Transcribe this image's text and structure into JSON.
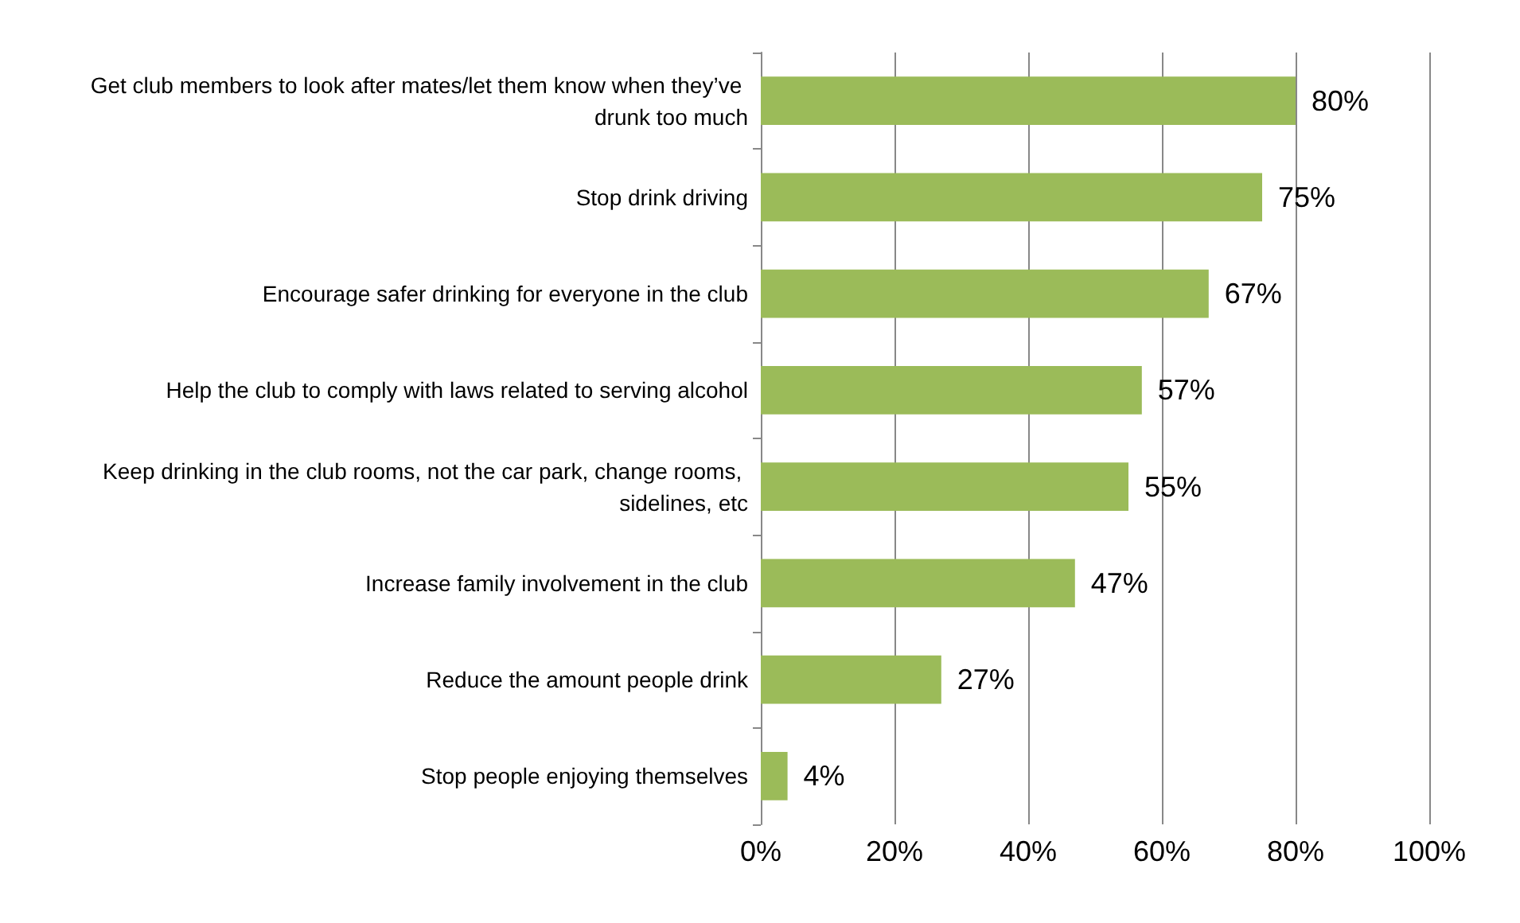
{
  "chart_data": {
    "type": "bar",
    "orientation": "horizontal",
    "categories": [
      "Get club members to look after mates/let them know when they’ve drunk too much",
      "Stop drink driving",
      "Encourage safer drinking for everyone in the club",
      "Help the club to comply with laws related to serving alcohol",
      "Keep drinking in the club rooms, not the car park, change rooms, sidelines, etc",
      "Increase family involvement in the club",
      "Reduce the amount people drink",
      "Stop people enjoying themselves"
    ],
    "values": [
      80,
      75,
      67,
      57,
      55,
      47,
      27,
      4
    ],
    "value_labels": [
      "80%",
      "75%",
      "67%",
      "57%",
      "55%",
      "47%",
      "27%",
      "4%"
    ],
    "color": "#9bbb59",
    "xlim": [
      0,
      100
    ],
    "xticks": [
      {
        "value": 0,
        "label": "0%"
      },
      {
        "value": 20,
        "label": "20%"
      },
      {
        "value": 40,
        "label": "40%"
      },
      {
        "value": 60,
        "label": "60%"
      },
      {
        "value": 80,
        "label": "80%"
      },
      {
        "value": 100,
        "label": "100%"
      }
    ],
    "grid": "x"
  }
}
